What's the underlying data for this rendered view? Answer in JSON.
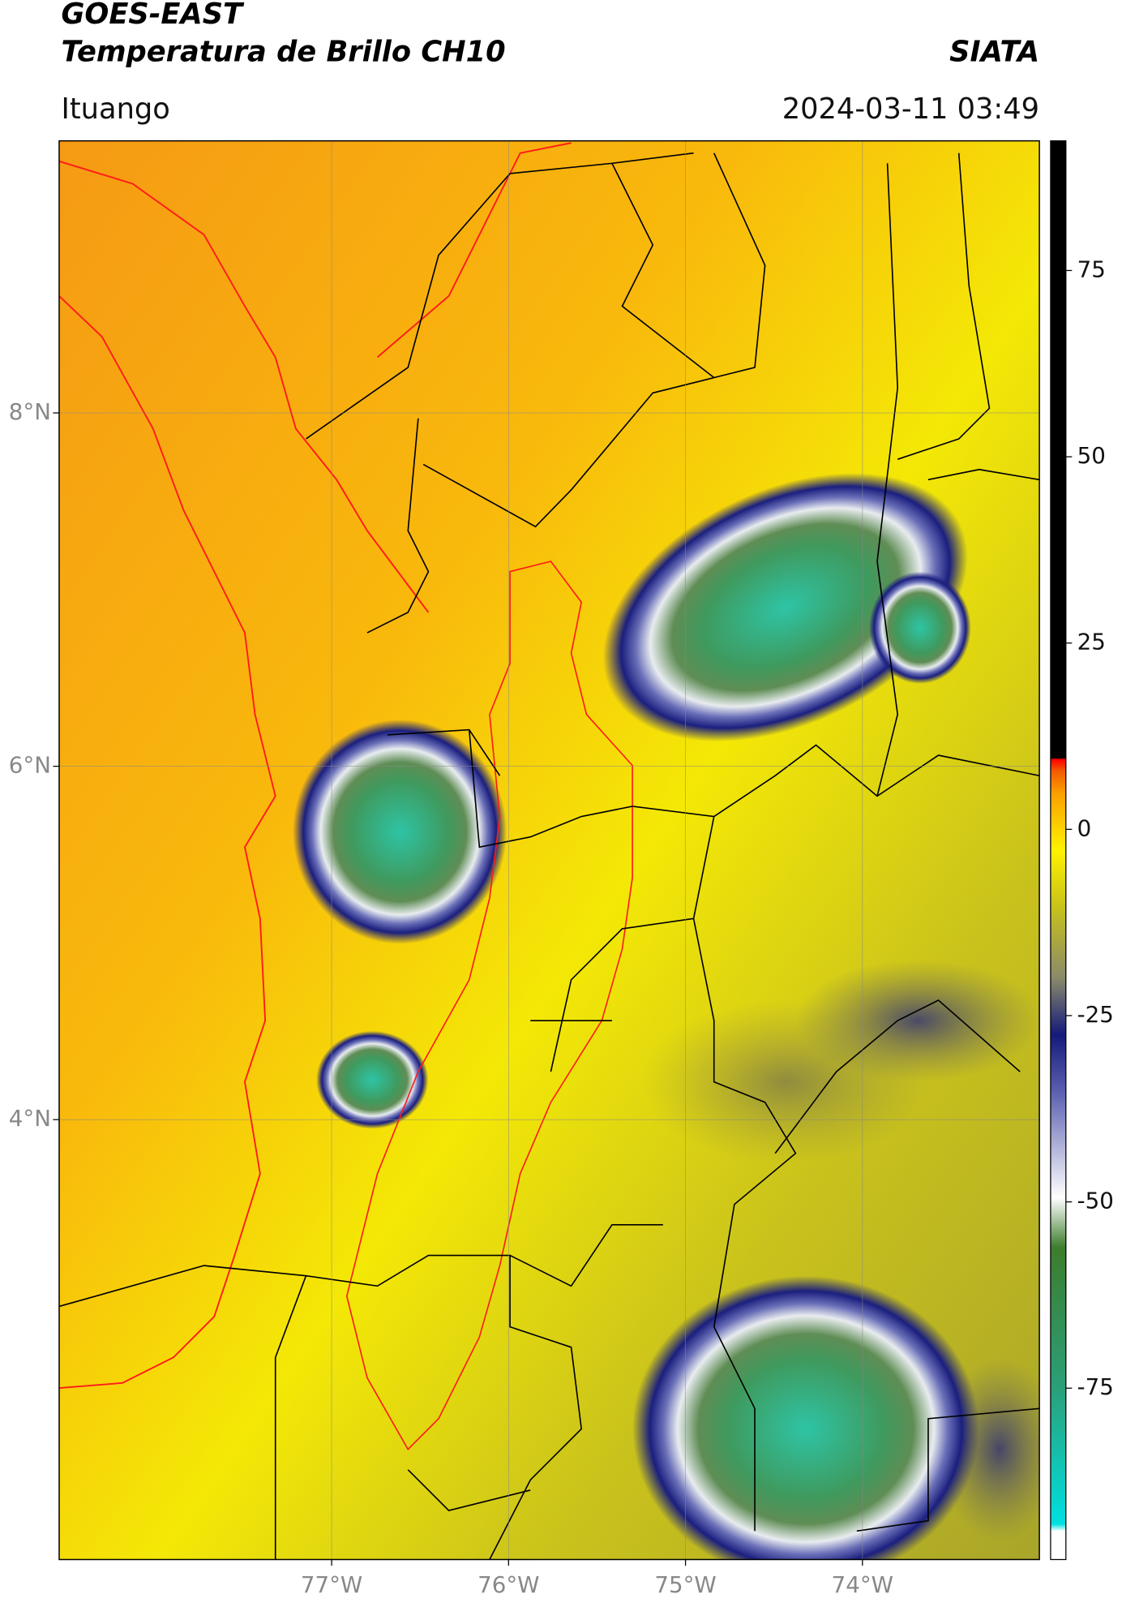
{
  "header": {
    "title": "GOES-EAST",
    "subtitle": "Temperatura de Brillo CH10",
    "source": "SIATA",
    "location": "Ituango",
    "datetime": "2024-03-11 03:49"
  },
  "map": {
    "xlim": [
      -78.54,
      -73.0
    ],
    "ylim": [
      1.51,
      9.54
    ],
    "grid": true,
    "xticks": [
      {
        "value": -77,
        "label": "77°W"
      },
      {
        "value": -76,
        "label": "76°W"
      },
      {
        "value": -75,
        "label": "75°W"
      },
      {
        "value": -74,
        "label": "74°W"
      }
    ],
    "yticks": [
      {
        "value": 8,
        "label": "8°N"
      },
      {
        "value": 6,
        "label": "6°N"
      },
      {
        "value": 4,
        "label": "4°N"
      }
    ]
  },
  "colorbar": {
    "ylim": [
      -98,
      92.4
    ],
    "yticks": [
      75,
      50,
      25,
      0,
      -25,
      -50,
      -75
    ]
  }
}
